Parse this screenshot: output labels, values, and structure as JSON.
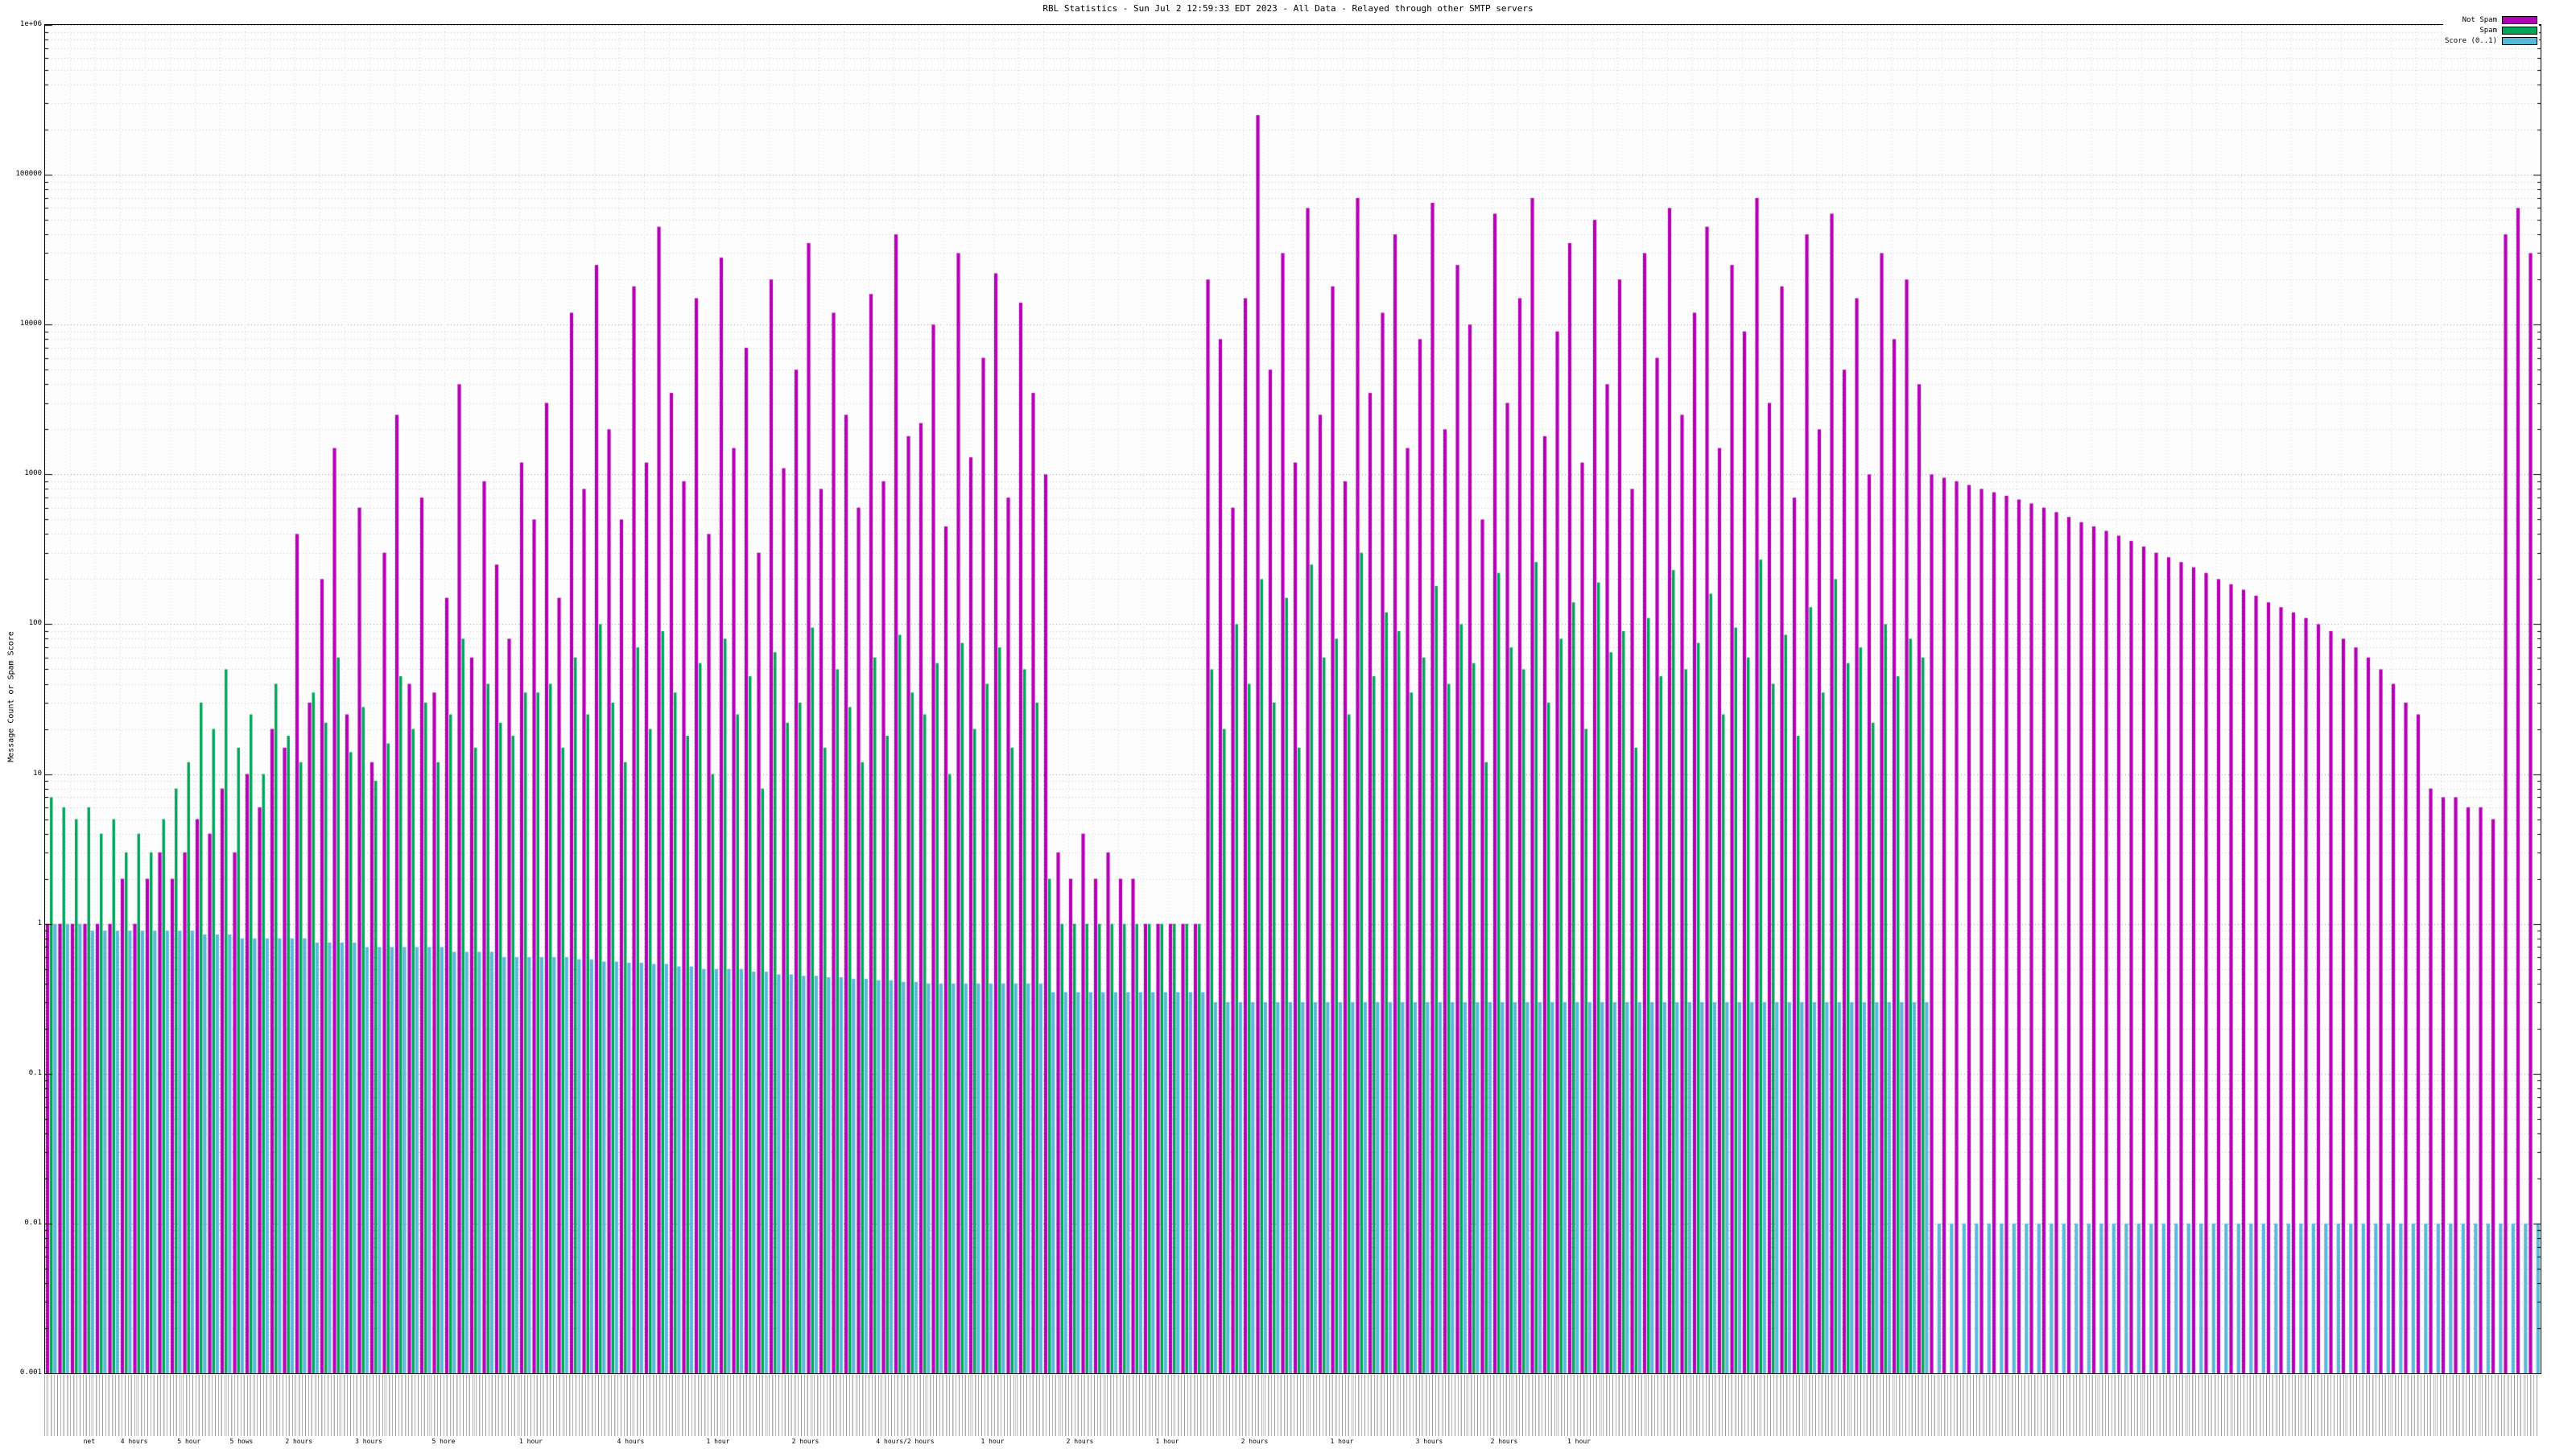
{
  "title": "RBL Statistics - Sun Jul  2 12:59:33 EDT 2023 - All Data - Relayed through other SMTP servers",
  "axes": {
    "y_label": "Message Count or Spam Score",
    "y_top_label": "1e+06"
  },
  "legend": {
    "items": [
      {
        "label": "Not Spam",
        "color": "#b400b4"
      },
      {
        "label": "Spam",
        "color": "#00a55a"
      },
      {
        "label": "Score (0..1)",
        "color": "#5ab8d8"
      }
    ]
  },
  "x_cluster_labels": [
    {
      "text": "net",
      "x": 1.8
    },
    {
      "text": "4 hours",
      "x": 3.6
    },
    {
      "text": "5 hour",
      "x": 5.8
    },
    {
      "text": "5 hows",
      "x": 7.9
    },
    {
      "text": "2 hours",
      "x": 10.2
    },
    {
      "text": "3 hours",
      "x": 13.0
    },
    {
      "text": "5 hore",
      "x": 16.0
    },
    {
      "text": "1 hour",
      "x": 19.5
    },
    {
      "text": "4 hours",
      "x": 23.5
    },
    {
      "text": "1 hour",
      "x": 27.0
    },
    {
      "text": "2 hours",
      "x": 30.5
    },
    {
      "text": "4 hours/2 hours",
      "x": 34.5
    },
    {
      "text": "1 hour",
      "x": 38.0
    },
    {
      "text": "2 hours",
      "x": 41.5
    },
    {
      "text": "1 hour",
      "x": 45.0
    },
    {
      "text": "2 hours",
      "x": 48.5
    },
    {
      "text": "1 hour",
      "x": 52.0
    },
    {
      "text": "3 hours",
      "x": 55.5
    },
    {
      "text": "2 hours",
      "x": 58.5
    },
    {
      "text": "1 hour",
      "x": 61.5
    }
  ],
  "chart_data": {
    "type": "bar",
    "title": "RBL Statistics - Sun Jul  2 12:59:33 EDT 2023 - All Data - Relayed through other SMTP servers",
    "xlabel": "",
    "ylabel": "Message Count or Spam Score",
    "yscale": "log",
    "ylim": [
      0.001,
      1000000
    ],
    "grid": true,
    "legend_position": "top-right",
    "yticks": [
      {
        "label": "1e+06",
        "value": 1000000
      },
      {
        "label": "100000",
        "value": 100000
      },
      {
        "label": "10000",
        "value": 10000
      },
      {
        "label": "1000",
        "value": 1000
      },
      {
        "label": "100",
        "value": 100
      },
      {
        "label": "10",
        "value": 10
      },
      {
        "label": "1",
        "value": 1
      },
      {
        "label": "0.1",
        "value": 0.1
      },
      {
        "label": "0.01",
        "value": 0.01
      },
      {
        "label": "0.001",
        "value": 0.001
      }
    ],
    "series": [
      {
        "name": "Not Spam",
        "color": "#b400b4",
        "values": [
          1,
          1,
          1,
          1,
          1,
          1,
          2,
          1,
          2,
          3,
          2,
          3,
          5,
          4,
          8,
          3,
          10,
          6,
          20,
          15,
          400,
          30,
          200,
          1500,
          25,
          600,
          12,
          300,
          2500,
          40,
          700,
          35,
          150,
          4000,
          60,
          900,
          250,
          80,
          1200,
          500,
          3000,
          150,
          12000,
          800,
          25000,
          2000,
          500,
          18000,
          1200,
          45000,
          3500,
          900,
          15000,
          400,
          28000,
          1500,
          7000,
          300,
          20000,
          1100,
          5000,
          35000,
          800,
          12000,
          2500,
          600,
          16000,
          900,
          40000,
          1800,
          2200,
          10000,
          450,
          30000,
          1300,
          6000,
          22000,
          700,
          14000,
          3500,
          1000,
          3,
          2,
          4,
          2,
          3,
          2,
          2,
          1,
          1,
          1,
          1,
          1,
          20000,
          8000,
          600,
          15000,
          250000,
          5000,
          30000,
          1200,
          60000,
          2500,
          18000,
          900,
          70000,
          3500,
          12000,
          40000,
          1500,
          8000,
          65000,
          2000,
          25000,
          10000,
          500,
          55000,
          3000,
          15000,
          70000,
          1800,
          9000,
          35000,
          1200,
          50000,
          4000,
          20000,
          800,
          30000,
          6000,
          60000,
          2500,
          12000,
          45000,
          1500,
          25000,
          9000,
          70000,
          3000,
          18000,
          700,
          40000,
          2000,
          55000,
          5000,
          15000,
          1000,
          30000,
          8000,
          20000,
          4000,
          1000,
          950,
          900,
          850,
          800,
          760,
          720,
          680,
          640,
          600,
          560,
          520,
          480,
          450,
          420,
          390,
          360,
          330,
          300,
          280,
          260,
          240,
          220,
          200,
          185,
          170,
          155,
          140,
          130,
          120,
          110,
          100,
          90,
          80,
          70,
          60,
          50,
          40,
          30,
          25,
          8,
          7,
          7,
          6,
          6,
          5,
          40000,
          60000,
          30000
        ]
      },
      {
        "name": "Spam",
        "color": "#00a55a",
        "values": [
          7,
          6,
          5,
          6,
          4,
          5,
          3,
          4,
          3,
          5,
          8,
          12,
          30,
          20,
          50,
          15,
          25,
          10,
          40,
          18,
          12,
          35,
          22,
          60,
          14,
          28,
          9,
          16,
          45,
          20,
          30,
          12,
          25,
          80,
          15,
          40,
          22,
          18,
          35,
          35,
          40,
          15,
          60,
          25,
          100,
          30,
          12,
          70,
          20,
          90,
          35,
          18,
          55,
          10,
          80,
          25,
          45,
          8,
          65,
          22,
          30,
          95,
          15,
          50,
          28,
          12,
          60,
          18,
          85,
          35,
          25,
          55,
          10,
          75,
          20,
          40,
          70,
          15,
          50,
          30,
          2,
          1,
          1,
          1,
          1,
          1,
          1,
          1,
          1,
          1,
          1,
          1,
          1,
          50,
          20,
          100,
          40,
          200,
          30,
          150,
          15,
          250,
          60,
          80,
          25,
          300,
          45,
          120,
          90,
          35,
          60,
          180,
          40,
          100,
          55,
          12,
          220,
          70,
          50,
          260,
          30,
          80,
          140,
          20,
          190,
          65,
          90,
          15,
          110,
          45,
          230,
          50,
          75,
          160,
          25,
          95,
          60,
          270,
          40,
          85,
          18,
          130,
          35,
          200,
          55,
          70,
          22,
          100,
          45,
          80,
          60,
          0,
          0,
          0,
          0,
          0,
          0,
          0,
          0,
          0,
          0,
          0,
          0,
          0,
          0,
          0,
          0,
          0,
          0,
          0,
          0,
          0,
          0,
          0,
          0,
          0,
          0,
          0,
          0,
          0,
          0,
          0,
          0,
          0,
          0,
          0,
          0,
          0,
          0,
          0,
          0,
          0,
          0,
          0,
          0,
          0,
          0,
          0,
          0,
          0
        ]
      },
      {
        "name": "Score (0..1)",
        "color": "#5ab8d8",
        "values": [
          1,
          1,
          1,
          0.9,
          0.9,
          0.9,
          0.9,
          0.9,
          0.9,
          0.9,
          0.9,
          0.9,
          0.85,
          0.85,
          0.85,
          0.8,
          0.8,
          0.8,
          0.8,
          0.8,
          0.8,
          0.75,
          0.75,
          0.75,
          0.75,
          0.7,
          0.7,
          0.7,
          0.7,
          0.7,
          0.7,
          0.7,
          0.65,
          0.65,
          0.65,
          0.65,
          0.6,
          0.6,
          0.6,
          0.6,
          0.6,
          0.6,
          0.58,
          0.58,
          0.56,
          0.56,
          0.55,
          0.55,
          0.54,
          0.54,
          0.52,
          0.52,
          0.5,
          0.5,
          0.5,
          0.5,
          0.48,
          0.48,
          0.46,
          0.46,
          0.45,
          0.45,
          0.44,
          0.44,
          0.43,
          0.43,
          0.42,
          0.42,
          0.41,
          0.41,
          0.4,
          0.4,
          0.4,
          0.4,
          0.4,
          0.4,
          0.4,
          0.4,
          0.4,
          0.4,
          0.35,
          0.35,
          0.35,
          0.35,
          0.35,
          0.35,
          0.35,
          0.35,
          0.35,
          0.35,
          0.35,
          0.35,
          0.35,
          0.3,
          0.3,
          0.3,
          0.3,
          0.3,
          0.3,
          0.3,
          0.3,
          0.3,
          0.3,
          0.3,
          0.3,
          0.3,
          0.3,
          0.3,
          0.3,
          0.3,
          0.3,
          0.3,
          0.3,
          0.3,
          0.3,
          0.3,
          0.3,
          0.3,
          0.3,
          0.3,
          0.3,
          0.3,
          0.3,
          0.3,
          0.3,
          0.3,
          0.3,
          0.3,
          0.3,
          0.3,
          0.3,
          0.3,
          0.3,
          0.3,
          0.3,
          0.3,
          0.3,
          0.3,
          0.3,
          0.3,
          0.3,
          0.3,
          0.3,
          0.3,
          0.3,
          0.3,
          0.3,
          0.3,
          0.3,
          0.3,
          0.3,
          0.01,
          0.01,
          0.01,
          0.01,
          0.01,
          0.01,
          0.01,
          0.01,
          0.01,
          0.01,
          0.01,
          0.01,
          0.01,
          0.01,
          0.01,
          0.01,
          0.01,
          0.01,
          0.01,
          0.01,
          0.01,
          0.01,
          0.01,
          0.01,
          0.01,
          0.01,
          0.01,
          0.01,
          0.01,
          0.01,
          0.01,
          0.01,
          0.01,
          0.01,
          0.01,
          0.01,
          0.01,
          0.01,
          0.01,
          0.01,
          0.01,
          0.01,
          0.01,
          0.01,
          0.01,
          0.01,
          0.01,
          0.01,
          0.01
        ]
      }
    ]
  }
}
